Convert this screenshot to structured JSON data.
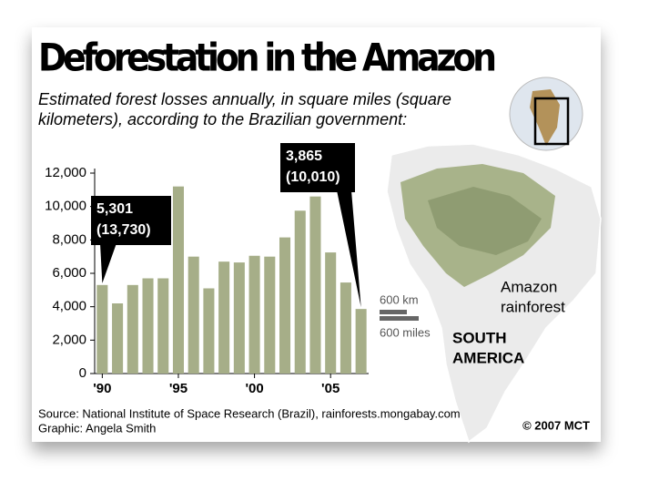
{
  "chart_data": {
    "type": "bar",
    "title": "Deforestation in the Amazon",
    "subtitle": [
      "Estimated forest losses annually, in square miles (square",
      "kilometers), according to the Brazilian government:"
    ],
    "categories": [
      "'90",
      null,
      null,
      null,
      null,
      "'95",
      null,
      null,
      null,
      null,
      "'00",
      null,
      null,
      null,
      null,
      "'05",
      null,
      null
    ],
    "values": [
      5301,
      4200,
      5300,
      5700,
      5700,
      11200,
      7000,
      5100,
      6700,
      6650,
      7050,
      7000,
      8150,
      9750,
      10600,
      7250,
      5450,
      3865
    ],
    "value_labels": [
      "5,301",
      null,
      null,
      null,
      null,
      null,
      null,
      null,
      null,
      null,
      null,
      null,
      null,
      null,
      null,
      null,
      null,
      "3,865"
    ],
    "value_labels_km2": [
      "(13,730)",
      null,
      null,
      null,
      null,
      null,
      null,
      null,
      null,
      null,
      null,
      null,
      null,
      null,
      null,
      null,
      null,
      "(10,010)"
    ],
    "color": "#a6ae88",
    "ylim": [
      0,
      12000
    ],
    "yticks": [
      0,
      {
        "value": 2000,
        "label": "2,000"
      },
      {
        "value": 4000,
        "label": "4,000"
      },
      {
        "value": 6000,
        "label": "6,000"
      },
      {
        "value": 8000,
        "label": "8,000"
      },
      {
        "value": 10000,
        "label": "10,000"
      },
      {
        "value": 12000,
        "label": "12,000"
      }
    ],
    "grid": false,
    "map": {
      "region_label": [
        "Amazon",
        "rainforest"
      ],
      "scale_km": "600 km",
      "scale_miles": "600 miles",
      "continent": [
        "SOUTH",
        "AMERICA"
      ]
    },
    "source": "Source: National Institute of Space Research (Brazil), rainforests.mongabay.com",
    "credit": "Graphic: Angela Smith",
    "copyright": "© 2007 MCT"
  }
}
